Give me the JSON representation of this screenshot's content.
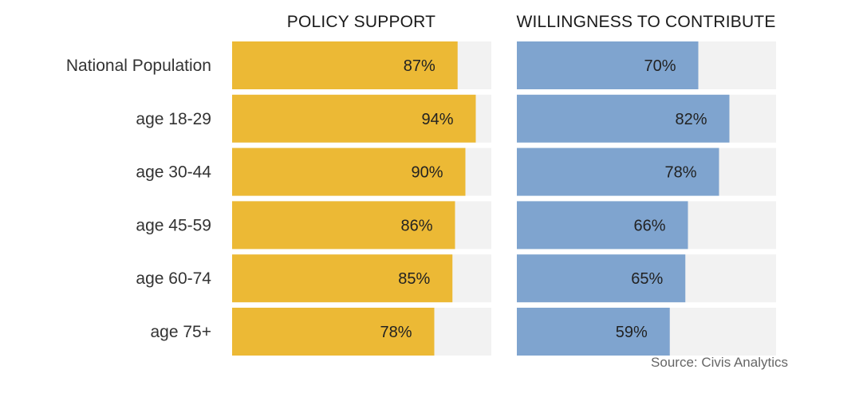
{
  "chart_data": {
    "type": "bar",
    "orientation": "horizontal",
    "categories": [
      "National Population",
      "age 18-29",
      "age 30-44",
      "age 45-59",
      "age 60-74",
      "age 75+"
    ],
    "panels": [
      {
        "title": "POLICY SUPPORT",
        "color": "#ECB935",
        "values": [
          87,
          94,
          90,
          86,
          85,
          78
        ],
        "labels": [
          "87%",
          "94%",
          "90%",
          "86%",
          "85%",
          "78%"
        ]
      },
      {
        "title": "WILLINGNESS TO CONTRIBUTE",
        "color": "#7FA4CF",
        "values": [
          70,
          82,
          78,
          66,
          65,
          59
        ],
        "labels": [
          "70%",
          "82%",
          "78%",
          "66%",
          "65%",
          "59%"
        ]
      }
    ],
    "track_color": "#F2F2F2",
    "xlim": [
      0,
      100
    ],
    "unit": "%",
    "source": "Source: Civis Analytics"
  }
}
